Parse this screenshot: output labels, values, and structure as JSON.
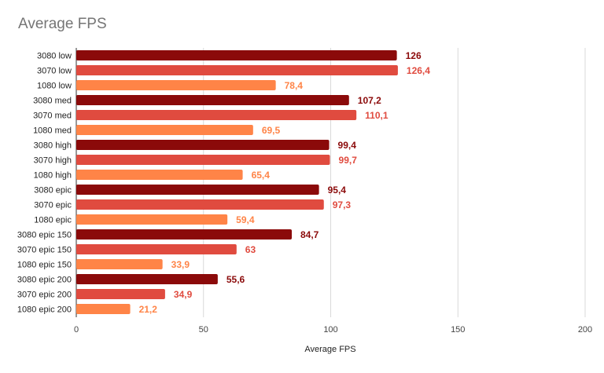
{
  "chart_data": {
    "type": "bar",
    "orientation": "horizontal",
    "title": "Average FPS",
    "xlabel": "Average FPS",
    "ylabel": "",
    "xlim": [
      0,
      200
    ],
    "x_ticks": [
      0,
      50,
      100,
      150,
      200
    ],
    "grid": true,
    "legend": "none",
    "categories": [
      "3080 low",
      "3070 low",
      "1080 low",
      "3080 med",
      "3070 med",
      "1080 med",
      "3080 high",
      "3070 high",
      "1080 high",
      "3080 epic",
      "3070 epic",
      "1080 epic",
      "3080 epic 150",
      "3070 epic 150",
      "1080 epic 150",
      "3080 epic 200",
      "3070 epic 200",
      "1080 epic 200"
    ],
    "values": [
      126,
      126.4,
      78.4,
      107.2,
      110.1,
      69.5,
      99.4,
      99.7,
      65.4,
      95.4,
      97.3,
      59.4,
      84.7,
      63,
      33.9,
      55.6,
      34.9,
      21.2
    ],
    "value_labels": [
      "126",
      "126,4",
      "78,4",
      "107,2",
      "110,1",
      "69,5",
      "99,4",
      "99,7",
      "65,4",
      "95,4",
      "97,3",
      "59,4",
      "84,7",
      "63",
      "33,9",
      "55,6",
      "34,9",
      "21,2"
    ],
    "colors": [
      "#8b0a0a",
      "#e04b3f",
      "#ff8447",
      "#8b0a0a",
      "#e04b3f",
      "#ff8447",
      "#8b0a0a",
      "#e04b3f",
      "#ff8447",
      "#8b0a0a",
      "#e04b3f",
      "#ff8447",
      "#8b0a0a",
      "#e04b3f",
      "#ff8447",
      "#8b0a0a",
      "#e04b3f",
      "#ff8447"
    ],
    "label_colors": [
      "#8b0a0a",
      "#e04b3f",
      "#ff8447",
      "#8b0a0a",
      "#e04b3f",
      "#ff8447",
      "#8b0a0a",
      "#e04b3f",
      "#ff8447",
      "#8b0a0a",
      "#e04b3f",
      "#ff8447",
      "#8b0a0a",
      "#e04b3f",
      "#ff8447",
      "#8b0a0a",
      "#e04b3f",
      "#ff8447"
    ]
  }
}
